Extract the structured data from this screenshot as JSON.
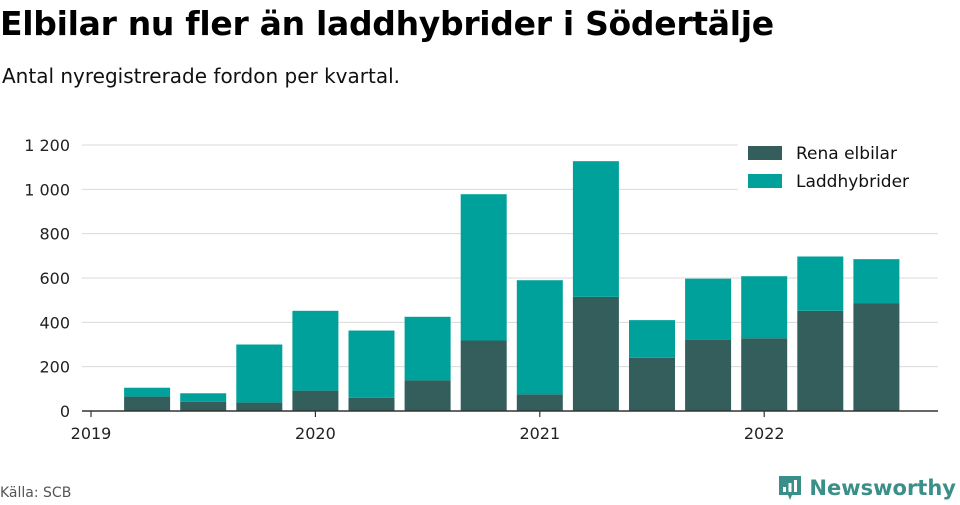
{
  "header": {
    "title": "Elbilar nu fler än laddhybrider i Södertälje",
    "subtitle": "Antal nyregistrerade fordon per kvartal."
  },
  "footer": {
    "source": "Källa: SCB",
    "brand": "Newsworthy",
    "brand_icon": "newsworthy-logo-icon"
  },
  "colors": {
    "elbilar": "#335e5b",
    "laddhybrider": "#00a19a",
    "grid": "#d9d9d9",
    "axis": "#333333",
    "brand": "#3a8f88"
  },
  "chart_data": {
    "type": "bar",
    "stacked": true,
    "categories": [
      "2019 Q2",
      "2019 Q3",
      "2019 Q4",
      "2020 Q1",
      "2020 Q2",
      "2020 Q3",
      "2020 Q4",
      "2021 Q1",
      "2021 Q2",
      "2021 Q3",
      "2021 Q4",
      "2022 Q1",
      "2022 Q2",
      "2022 Q3"
    ],
    "x_tick_labels": [
      "2019",
      "2020",
      "2021",
      "2022"
    ],
    "y_tick_labels": [
      "0",
      "200",
      "400",
      "600",
      "800",
      "1 000",
      "1 200"
    ],
    "ylim": [
      0,
      1200
    ],
    "grid": true,
    "legend_position": "top-right",
    "series": [
      {
        "name": "Rena elbilar",
        "values": [
          65,
          42,
          38,
          92,
          60,
          138,
          318,
          75,
          515,
          240,
          322,
          328,
          452,
          485
        ]
      },
      {
        "name": "Laddhybrider",
        "values": [
          40,
          38,
          262,
          360,
          303,
          287,
          660,
          515,
          612,
          170,
          275,
          280,
          245,
          200
        ]
      }
    ]
  }
}
